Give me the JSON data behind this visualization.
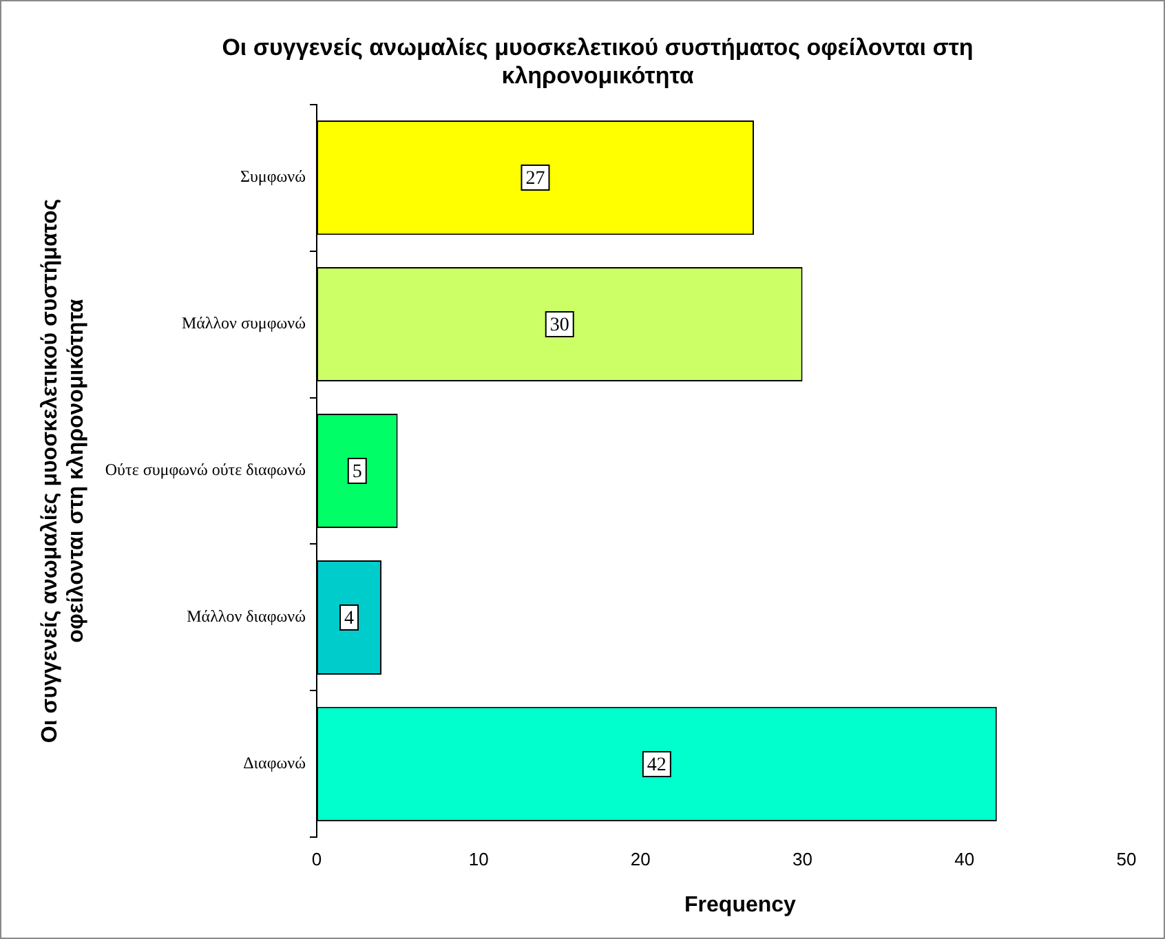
{
  "chart_data": {
    "type": "bar",
    "orientation": "horizontal",
    "title": "Οι συγγενείς ανωμαλίες μυοσκελετικού συστήματος οφείλονται στη\nκληρονομικότητα",
    "xlabel": "Frequency",
    "ylabel": "Οι συγγενείς ανωμαλίες μυοσκελετικού συστήματος\nοφείλονται στη κληρονομικότητα",
    "categories": [
      "Συμφωνώ",
      "Μάλλον συμφωνώ",
      "Ούτε συμφωνώ ούτε διαφωνώ",
      "Μάλλον διαφωνώ",
      "Διαφωνώ"
    ],
    "values": [
      27,
      30,
      5,
      4,
      42
    ],
    "colors": [
      "#ffff00",
      "#ccff66",
      "#00ff66",
      "#00cccc",
      "#00ffcc"
    ],
    "xlim": [
      0,
      52.3
    ],
    "xticks": [
      0,
      10,
      20,
      30,
      40,
      50
    ],
    "data_labels": true,
    "grid": false,
    "legend": false
  }
}
